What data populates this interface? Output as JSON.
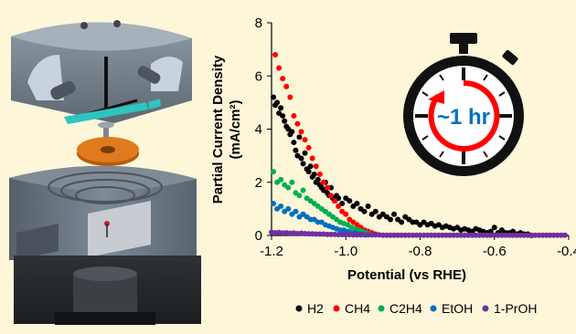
{
  "chart_data": {
    "type": "scatter",
    "xlabel": "Potential (vs RHE)",
    "ylabel_line1": "Partial Current Density",
    "ylabel_line2": "(mA/cm²)",
    "xlim": [
      -1.2,
      -0.4
    ],
    "ylim": [
      0,
      8
    ],
    "x_ticks": [
      "-1.2",
      "-1.0",
      "-0.8",
      "-0.6",
      "-0.4"
    ],
    "y_ticks": [
      "0",
      "2",
      "4",
      "6",
      "8"
    ],
    "grid": false,
    "legend_position": "bottom",
    "timer_label": "~1 hr",
    "series": [
      {
        "name": "H2",
        "color": "#000000",
        "x": [
          -1.195,
          -1.19,
          -1.185,
          -1.18,
          -1.175,
          -1.17,
          -1.165,
          -1.16,
          -1.155,
          -1.15,
          -1.145,
          -1.14,
          -1.135,
          -1.13,
          -1.125,
          -1.12,
          -1.115,
          -1.11,
          -1.105,
          -1.1,
          -1.095,
          -1.09,
          -1.085,
          -1.08,
          -1.075,
          -1.07,
          -1.065,
          -1.06,
          -1.055,
          -1.05,
          -1.045,
          -1.04,
          -1.035,
          -1.03,
          -1.025,
          -1.02,
          -1.01,
          -1.0,
          -0.99,
          -0.98,
          -0.97,
          -0.96,
          -0.95,
          -0.94,
          -0.93,
          -0.92,
          -0.91,
          -0.9,
          -0.89,
          -0.88,
          -0.87,
          -0.86,
          -0.85,
          -0.84,
          -0.83,
          -0.82,
          -0.81,
          -0.8,
          -0.79,
          -0.78,
          -0.77,
          -0.76,
          -0.75,
          -0.74,
          -0.73,
          -0.72,
          -0.71,
          -0.7,
          -0.69,
          -0.68,
          -0.67,
          -0.66,
          -0.65,
          -0.64,
          -0.63,
          -0.62,
          -0.61,
          -0.6,
          -0.59,
          -0.58,
          -0.57,
          -0.56,
          -0.55,
          -0.54,
          -0.53,
          -0.52,
          -0.51,
          -0.5
        ],
        "y": [
          5.2,
          4.9,
          5.0,
          4.6,
          4.8,
          4.5,
          4.3,
          4.1,
          4.0,
          3.8,
          3.9,
          3.5,
          3.2,
          3.0,
          3.7,
          2.9,
          2.7,
          3.1,
          2.5,
          2.4,
          2.6,
          2.2,
          2.3,
          2.0,
          2.1,
          1.9,
          1.8,
          1.7,
          2.0,
          1.6,
          1.5,
          1.8,
          1.4,
          1.3,
          1.5,
          1.4,
          1.2,
          1.4,
          1.3,
          1.1,
          1.2,
          1.0,
          0.9,
          1.1,
          0.8,
          0.9,
          0.7,
          0.8,
          0.7,
          0.6,
          0.8,
          0.6,
          0.5,
          0.7,
          0.6,
          0.5,
          0.5,
          0.4,
          0.5,
          0.4,
          0.45,
          0.35,
          0.4,
          0.3,
          0.35,
          0.3,
          0.25,
          0.3,
          0.2,
          0.25,
          0.2,
          0.15,
          0.25,
          0.2,
          0.15,
          0.1,
          0.15,
          0.3,
          0.1,
          0.2,
          0.1,
          0.1,
          0.15,
          0.05,
          0.1,
          0.05,
          0.05,
          0.0
        ]
      },
      {
        "name": "CH4",
        "color": "#ff0000",
        "x": [
          -1.19,
          -1.18,
          -1.17,
          -1.16,
          -1.15,
          -1.14,
          -1.13,
          -1.12,
          -1.11,
          -1.1,
          -1.09,
          -1.08,
          -1.07,
          -1.06,
          -1.05,
          -1.04,
          -1.03,
          -1.02,
          -1.01,
          -1.0,
          -0.99,
          -0.98,
          -0.97,
          -0.96,
          -0.95,
          -0.94,
          -0.93,
          -0.92
        ],
        "y": [
          6.8,
          6.3,
          5.9,
          5.6,
          5.2,
          4.5,
          4.2,
          3.9,
          3.6,
          3.3,
          2.9,
          2.6,
          2.3,
          2.0,
          1.8,
          1.5,
          1.3,
          1.1,
          0.9,
          0.8,
          0.6,
          0.5,
          0.4,
          0.3,
          0.2,
          0.15,
          0.1,
          0.05
        ]
      },
      {
        "name": "C2H4",
        "color": "#00b050",
        "x": [
          -1.195,
          -1.185,
          -1.175,
          -1.165,
          -1.155,
          -1.145,
          -1.135,
          -1.125,
          -1.115,
          -1.105,
          -1.095,
          -1.085,
          -1.075,
          -1.065,
          -1.055,
          -1.045,
          -1.035,
          -1.025,
          -1.015,
          -1.005,
          -0.995,
          -0.985,
          -0.975,
          -0.965,
          -0.955,
          -0.945,
          -0.935
        ],
        "y": [
          2.4,
          2.0,
          2.1,
          1.9,
          1.8,
          2.0,
          1.6,
          1.5,
          1.7,
          1.4,
          1.3,
          1.2,
          1.1,
          1.0,
          0.9,
          0.8,
          0.7,
          0.6,
          0.5,
          0.45,
          0.4,
          0.3,
          0.25,
          0.2,
          0.15,
          0.1,
          0.05
        ]
      },
      {
        "name": "EtOH",
        "color": "#0070c0",
        "x": [
          -1.195,
          -1.185,
          -1.175,
          -1.165,
          -1.155,
          -1.145,
          -1.135,
          -1.125,
          -1.115,
          -1.105,
          -1.095,
          -1.085,
          -1.075,
          -1.065,
          -1.055,
          -1.045,
          -1.035,
          -1.025,
          -1.015,
          -1.005,
          -0.995,
          -0.985,
          -0.975,
          -0.965,
          -0.955,
          -0.945
        ],
        "y": [
          1.2,
          1.0,
          1.1,
          0.9,
          1.0,
          0.8,
          0.9,
          0.7,
          0.8,
          0.7,
          0.6,
          0.6,
          0.5,
          0.5,
          0.4,
          0.35,
          0.3,
          0.25,
          0.2,
          0.2,
          0.15,
          0.1,
          0.1,
          0.05,
          0.05,
          0.02
        ]
      },
      {
        "name": "1-PrOH",
        "color": "#7030a0",
        "x": [
          -1.2,
          -1.19,
          -1.18,
          -1.17,
          -1.16,
          -1.15,
          -1.14,
          -1.13,
          -1.12,
          -1.11,
          -1.1,
          -1.09,
          -1.08,
          -1.07,
          -1.06,
          -1.05,
          -1.04,
          -1.03,
          -1.02,
          -1.01,
          -1.0,
          -0.99,
          -0.98,
          -0.97,
          -0.96,
          -0.95,
          -0.94,
          -0.93,
          -0.92,
          -0.91,
          -0.9,
          -0.89,
          -0.88,
          -0.87,
          -0.86,
          -0.85,
          -0.84,
          -0.83,
          -0.82,
          -0.81,
          -0.8,
          -0.79,
          -0.78,
          -0.77,
          -0.76,
          -0.75,
          -0.74,
          -0.73,
          -0.72,
          -0.71,
          -0.7,
          -0.69,
          -0.68,
          -0.67,
          -0.66,
          -0.65,
          -0.64,
          -0.63,
          -0.62,
          -0.61,
          -0.6,
          -0.59,
          -0.58,
          -0.57,
          -0.56,
          -0.55,
          -0.54,
          -0.53,
          -0.52,
          -0.51,
          -0.5,
          -0.49,
          -0.48,
          -0.47,
          -0.46,
          -0.45,
          -0.44,
          -0.43,
          -0.42,
          -0.41
        ],
        "y": [
          0.12,
          0.1,
          0.11,
          0.09,
          0.1,
          0.08,
          0.09,
          0.07,
          0.08,
          0.07,
          0.06,
          0.06,
          0.05,
          0.05,
          0.05,
          0.04,
          0.04,
          0.04,
          0.03,
          0.03,
          0.03,
          0.03,
          0.02,
          0.02,
          0.02,
          0.02,
          0.02,
          0.02,
          0.02,
          0.02,
          0.01,
          0.01,
          0.01,
          0.01,
          0.01,
          0.01,
          0.01,
          0.01,
          0.01,
          0.01,
          0.01,
          0.01,
          0.01,
          0.01,
          0.01,
          0.01,
          0.01,
          0.01,
          0.01,
          0.01,
          0.01,
          0.01,
          0.01,
          0.01,
          0.01,
          0.01,
          0.01,
          0.01,
          0.01,
          0.01,
          0.01,
          0.01,
          0.01,
          0.01,
          0.01,
          0.01,
          0.01,
          0.01,
          0.01,
          0.01,
          0.01,
          0.01,
          0.01,
          0.01,
          0.01,
          0.01,
          0.01,
          0.01,
          0.01,
          0.01
        ]
      }
    ]
  },
  "colors": {
    "background": "#fdf6d8",
    "cell_body": "#6e7a85",
    "cell_body_dark": "#3a3d42",
    "cell_light": "#b8c4cf",
    "membrane": "#2ec4c0",
    "electrode": "#e07a1f",
    "timer_ring": "#ff0000",
    "timer_text": "#0070c0"
  },
  "icons": {
    "illustration": "electrochemical-cell-illustration",
    "timer": "stopwatch-icon"
  }
}
